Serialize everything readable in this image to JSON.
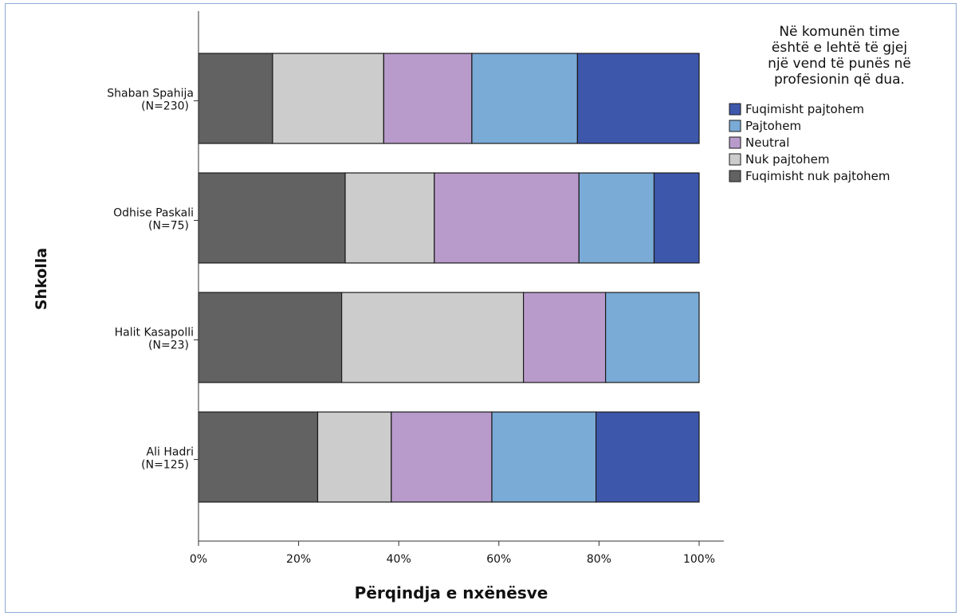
{
  "chart_data": {
    "type": "bar",
    "orientation": "horizontal",
    "stacked": "percent",
    "xlabel": "Përqindja e nxënësve",
    "ylabel": "Shkolla",
    "xlim": [
      0,
      100
    ],
    "x_ticks": [
      "0%",
      "20%",
      "40%",
      "60%",
      "80%",
      "100%"
    ],
    "categories": [
      {
        "name": "Shaban Spahija",
        "n": "(N=230)"
      },
      {
        "name": "Odhise Paskali",
        "n": "(N=75)"
      },
      {
        "name": "Halit Kasapolli",
        "n": "(N=23)"
      },
      {
        "name": "Ali Hadri",
        "n": "(N=125)"
      }
    ],
    "legend": {
      "title": [
        "Në komunën time",
        "është e lehtë të gjej",
        "një vend të punës në",
        "profesionin që dua."
      ],
      "position": "right"
    },
    "series": [
      {
        "name": "Fuqimisht nuk pajtohem",
        "color": "#626262",
        "values": [
          14.8,
          29.3,
          28.6,
          23.8
        ]
      },
      {
        "name": "Nuk pajtohem",
        "color": "#cccccc",
        "values": [
          22.2,
          17.8,
          36.3,
          14.7
        ]
      },
      {
        "name": "Neutral",
        "color": "#b89acb",
        "values": [
          17.6,
          28.9,
          16.4,
          20.1
        ]
      },
      {
        "name": "Pajtohem",
        "color": "#7aaad6",
        "values": [
          21.1,
          15.0,
          18.7,
          20.8
        ]
      },
      {
        "name": "Fuqimisht pajtohem",
        "color": "#3d57ab",
        "values": [
          24.3,
          9.0,
          0.0,
          20.6
        ]
      }
    ],
    "legend_order": [
      4,
      3,
      2,
      1,
      0
    ]
  }
}
